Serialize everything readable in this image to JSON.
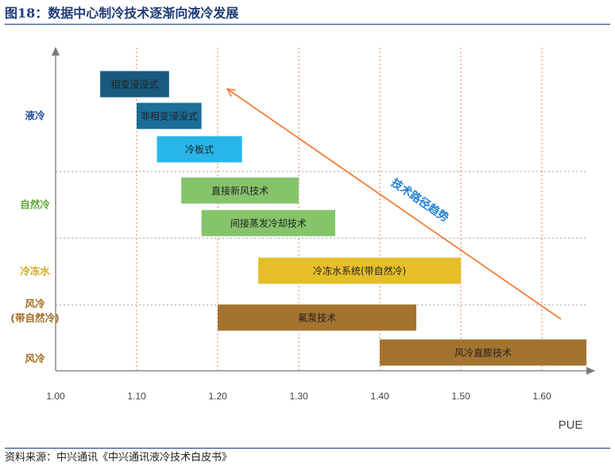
{
  "title": "图18：数据中心制冷技术逐渐向液冷发展",
  "source": "资料来源：中兴通讯《中兴通讯液冷技术白皮书》",
  "chart_data": {
    "type": "bar",
    "orientation": "horizontal-range",
    "xlabel": "PUE",
    "xlim": [
      1.0,
      1.65
    ],
    "x_ticks": [
      "1.00",
      "1.10",
      "1.20",
      "1.30",
      "1.40",
      "1.50",
      "1.60"
    ],
    "grid": "vertical dashed red gridlines at ticks; dashed separators between categories",
    "categories": [
      {
        "label": "液冷",
        "color": "#1f4e9a",
        "lines": [
          "液冷"
        ]
      },
      {
        "label": "自然冷",
        "color": "#5fa83a",
        "lines": [
          "自然冷"
        ]
      },
      {
        "label": "冷冻水",
        "color": "#d7a91a",
        "lines": [
          "冷冻水"
        ]
      },
      {
        "label": "风冷(带自然冷)",
        "color": "#a06a1e",
        "lines": [
          "风冷",
          "(带自然冷)"
        ]
      },
      {
        "label": "风冷",
        "color": "#a06a1e",
        "lines": [
          "风冷"
        ]
      }
    ],
    "bars": [
      {
        "label": "相变浸没式",
        "category": "液冷",
        "start": 1.055,
        "end": 1.14,
        "color": "#1a5a7e"
      },
      {
        "label": "非相变浸没式",
        "category": "液冷",
        "start": 1.1,
        "end": 1.18,
        "color": "#1a6e98"
      },
      {
        "label": "冷板式",
        "category": "液冷",
        "start": 1.125,
        "end": 1.23,
        "color": "#29b5e8"
      },
      {
        "label": "直接新风技术",
        "category": "自然冷",
        "start": 1.155,
        "end": 1.3,
        "color": "#86c46a"
      },
      {
        "label": "间接蒸发冷却技术",
        "category": "自然冷",
        "start": 1.18,
        "end": 1.345,
        "color": "#86c46a"
      },
      {
        "label": "冷冻水系统(带自然冷)",
        "category": "冷冻水",
        "start": 1.25,
        "end": 1.5,
        "color": "#e6bf28"
      },
      {
        "label": "氟泵技术",
        "category": "风冷(带自然冷)",
        "start": 1.2,
        "end": 1.445,
        "color": "#a47330"
      },
      {
        "label": "风冷直膨技术",
        "category": "风冷",
        "start": 1.4,
        "end": 1.655,
        "color": "#a47330"
      }
    ],
    "annotation": {
      "text": "技术路径趋势",
      "arrow_color": "#f07d3b",
      "direction": "from lower-right toward upper-left"
    }
  }
}
